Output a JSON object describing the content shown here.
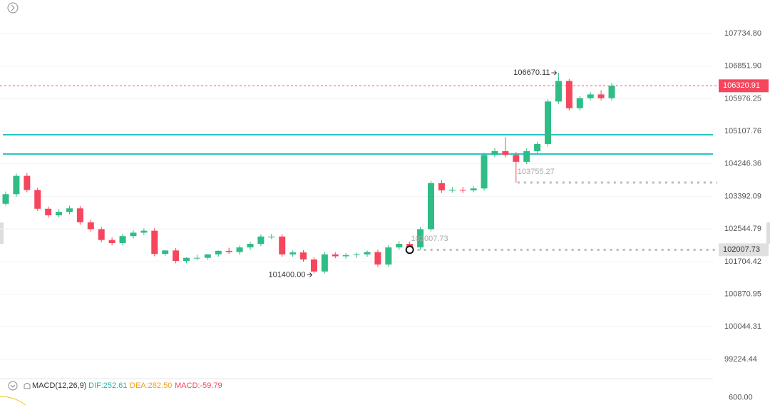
{
  "chart_data": {
    "type": "candlestick",
    "open": [
      103200,
      103450,
      103930,
      103560,
      103070,
      102900,
      102990,
      103080,
      102720,
      102540,
      102260,
      102180,
      102360,
      102450,
      102500,
      101900,
      101990,
      101720,
      101800,
      101800,
      101890,
      101980,
      101950,
      102070,
      102160,
      102350,
      102350,
      101890,
      101940,
      101760,
      101450,
      101890,
      101840,
      101870,
      101890,
      101950,
      101630,
      102070,
      102160,
      102070,
      102540,
      103740,
      103550,
      103560,
      103550,
      103600,
      104480,
      104580,
      104480,
      104300,
      104580,
      104770,
      105900,
      106450,
      105720,
      105990,
      106090,
      105990
    ],
    "high": [
      103520,
      103990,
      104000,
      103620,
      103130,
      103060,
      103150,
      103140,
      102790,
      102600,
      102330,
      102420,
      102510,
      102560,
      102570,
      102000,
      102050,
      101820,
      101880,
      101900,
      101990,
      102060,
      102120,
      102220,
      102410,
      102420,
      102410,
      101990,
      102000,
      101820,
      101950,
      101950,
      101920,
      101940,
      101990,
      102010,
      102130,
      102230,
      102220,
      102600,
      103800,
      103820,
      103640,
      103640,
      103660,
      104540,
      104660,
      104950,
      104560,
      104650,
      104830,
      105960,
      106670.11,
      106500,
      106050,
      106150,
      106200,
      106400
    ],
    "low": [
      103150,
      103380,
      103500,
      103010,
      102840,
      102850,
      102930,
      102660,
      102480,
      102200,
      102120,
      102120,
      102300,
      102390,
      101840,
      101850,
      101660,
      101660,
      101740,
      101750,
      101830,
      101900,
      101880,
      102000,
      102100,
      102280,
      101830,
      101830,
      101700,
      101400,
      101400,
      101790,
      101780,
      101800,
      101830,
      101570,
      101570,
      102010,
      102007.73,
      102010,
      102480,
      103480,
      103490,
      103480,
      103500,
      103540,
      104420,
      104420,
      103755.27,
      104240,
      104520,
      104700,
      105840,
      105660,
      105660,
      105930,
      105930,
      105930
    ],
    "close": [
      103450,
      103930,
      103560,
      103070,
      102900,
      102990,
      103080,
      102720,
      102540,
      102260,
      102180,
      102360,
      102450,
      102500,
      101900,
      101990,
      101720,
      101800,
      101800,
      101890,
      101980,
      101950,
      102070,
      102160,
      102350,
      102350,
      101890,
      101940,
      101760,
      101450,
      101890,
      101840,
      101870,
      101890,
      101950,
      101630,
      102070,
      102160,
      102070,
      102540,
      103740,
      103550,
      103560,
      103550,
      103600,
      104480,
      104580,
      104480,
      104300,
      104580,
      104770,
      105900,
      106450,
      105720,
      105990,
      106090,
      105990,
      106320.91
    ],
    "up_color": "#2ebd85",
    "down_color": "#f6465d",
    "log": true,
    "ylim": [
      98760,
      108650
    ],
    "yticks": [
      {
        "value": 107734.8,
        "label": "107734.80"
      },
      {
        "value": 106851.9,
        "label": "106851.90"
      },
      105976.25,
      105107.76,
      104246.36,
      103392.09,
      102544.79,
      101704.42,
      100870.95,
      100044.31,
      99224.44
    ],
    "hlines": [
      105015,
      104506
    ],
    "hline_color": "#2ec4c4",
    "low_annotation": {
      "value": 101400,
      "label": "101400.00"
    },
    "macd": {
      "title": "MACD(12,26,9)",
      "dif": "DIF:252.61",
      "dea": "DEA:282.50",
      "macd": "MACD:-59.79",
      "ylim": [
        500,
        700
      ],
      "yticks": [
        {
          "value": 600,
          "label": "600.00"
        }
      ]
    }
  }
}
